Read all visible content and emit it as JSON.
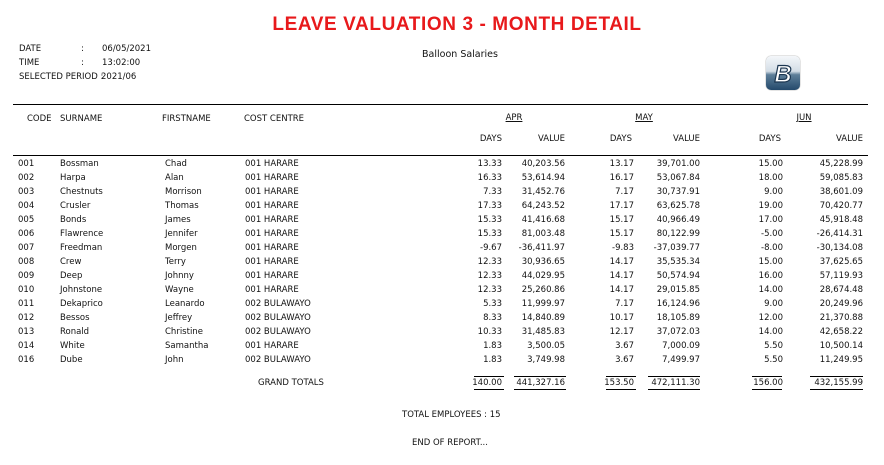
{
  "report": {
    "title": "LEAVE VALUATION 3 - MONTH DETAIL",
    "company": "Balloon Salaries",
    "logo_text": "B"
  },
  "meta": {
    "date_label": "DATE",
    "date_sep": ":",
    "date_value": "06/05/2021",
    "time_label": "TIME",
    "time_sep": ":",
    "time_value": "13:02:00",
    "period_label": "SELECTED PERIOD :",
    "period_value": "2021/06"
  },
  "columns": {
    "code": "CODE",
    "surname": "SURNAME",
    "firstname": "FIRSTNAME",
    "cost_centre": "COST CENTRE",
    "months": [
      "APR",
      "MAY",
      "JUN"
    ],
    "days": "DAYS",
    "value": "VALUE"
  },
  "rows": [
    {
      "code": "001",
      "surname": "Bossman",
      "firstname": "Chad",
      "cc": "001  HARARE",
      "d1": "13.33",
      "v1": "40,203.56",
      "d2": "13.17",
      "v2": "39,701.00",
      "d3": "15.00",
      "v3": "45,228.99"
    },
    {
      "code": "002",
      "surname": "Harpa",
      "firstname": "Alan",
      "cc": "001  HARARE",
      "d1": "16.33",
      "v1": "53,614.94",
      "d2": "16.17",
      "v2": "53,067.84",
      "d3": "18.00",
      "v3": "59,085.83"
    },
    {
      "code": "003",
      "surname": "Chestnuts",
      "firstname": "Morrison",
      "cc": "001  HARARE",
      "d1": "7.33",
      "v1": "31,452.76",
      "d2": "7.17",
      "v2": "30,737.91",
      "d3": "9.00",
      "v3": "38,601.09"
    },
    {
      "code": "004",
      "surname": "Crusler",
      "firstname": "Thomas",
      "cc": "001  HARARE",
      "d1": "17.33",
      "v1": "64,243.52",
      "d2": "17.17",
      "v2": "63,625.78",
      "d3": "19.00",
      "v3": "70,420.77"
    },
    {
      "code": "005",
      "surname": "Bonds",
      "firstname": "James",
      "cc": "001  HARARE",
      "d1": "15.33",
      "v1": "41,416.68",
      "d2": "15.17",
      "v2": "40,966.49",
      "d3": "17.00",
      "v3": "45,918.48"
    },
    {
      "code": "006",
      "surname": "Flawrence",
      "firstname": "Jennifer",
      "cc": "001  HARARE",
      "d1": "15.33",
      "v1": "81,003.48",
      "d2": "15.17",
      "v2": "80,122.99",
      "d3": "-5.00",
      "v3": "-26,414.31"
    },
    {
      "code": "007",
      "surname": "Freedman",
      "firstname": "Morgen",
      "cc": "001  HARARE",
      "d1": "-9.67",
      "v1": "-36,411.97",
      "d2": "-9.83",
      "v2": "-37,039.77",
      "d3": "-8.00",
      "v3": "-30,134.08"
    },
    {
      "code": "008",
      "surname": "Crew",
      "firstname": "Terry",
      "cc": "001  HARARE",
      "d1": "12.33",
      "v1": "30,936.65",
      "d2": "14.17",
      "v2": "35,535.34",
      "d3": "15.00",
      "v3": "37,625.65"
    },
    {
      "code": "009",
      "surname": "Deep",
      "firstname": "Johnny",
      "cc": "001  HARARE",
      "d1": "12.33",
      "v1": "44,029.95",
      "d2": "14.17",
      "v2": "50,574.94",
      "d3": "16.00",
      "v3": "57,119.93"
    },
    {
      "code": "010",
      "surname": "Johnstone",
      "firstname": "Wayne",
      "cc": "001  HARARE",
      "d1": "12.33",
      "v1": "25,260.86",
      "d2": "14.17",
      "v2": "29,015.85",
      "d3": "14.00",
      "v3": "28,674.48"
    },
    {
      "code": "011",
      "surname": "Dekaprico",
      "firstname": "Leanardo",
      "cc": "002  BULAWAYO",
      "d1": "5.33",
      "v1": "11,999.97",
      "d2": "7.17",
      "v2": "16,124.96",
      "d3": "9.00",
      "v3": "20,249.96"
    },
    {
      "code": "012",
      "surname": "Bessos",
      "firstname": "Jeffrey",
      "cc": "002  BULAWAYO",
      "d1": "8.33",
      "v1": "14,840.89",
      "d2": "10.17",
      "v2": "18,105.89",
      "d3": "12.00",
      "v3": "21,370.88"
    },
    {
      "code": "013",
      "surname": "Ronald",
      "firstname": "Christine",
      "cc": "002  BULAWAYO",
      "d1": "10.33",
      "v1": "31,485.83",
      "d2": "12.17",
      "v2": "37,072.03",
      "d3": "14.00",
      "v3": "42,658.22"
    },
    {
      "code": "014",
      "surname": "White",
      "firstname": "Samantha",
      "cc": "001  HARARE",
      "d1": "1.83",
      "v1": "3,500.05",
      "d2": "3.67",
      "v2": "7,000.09",
      "d3": "5.50",
      "v3": "10,500.14"
    },
    {
      "code": "016",
      "surname": "Dube",
      "firstname": "John",
      "cc": "002  BULAWAYO",
      "d1": "1.83",
      "v1": "3,749.98",
      "d2": "3.67",
      "v2": "7,499.97",
      "d3": "5.50",
      "v3": "11,249.95"
    }
  ],
  "totals": {
    "label": "GRAND TOTALS",
    "d1": "140.00",
    "v1": "441,327.16",
    "d2": "153.50",
    "v2": "472,111.30",
    "d3": "156.00",
    "v3": "432,155.99"
  },
  "footer": {
    "total_employees": "TOTAL EMPLOYEES : 15",
    "end": "END OF REPORT..."
  },
  "colors": {
    "title": "#e8191b",
    "text": "#111111",
    "rule": "#000000"
  }
}
